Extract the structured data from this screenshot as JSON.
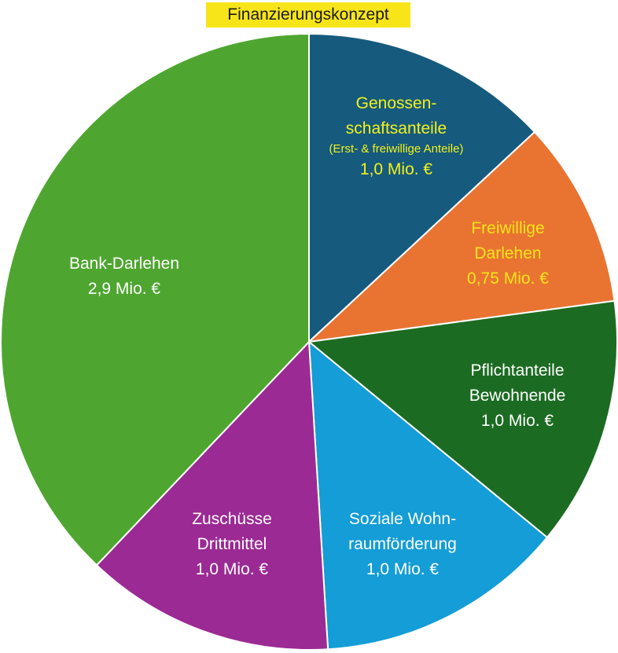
{
  "chart_data": {
    "type": "pie",
    "title": "Finanzierungskonzept",
    "colors": {
      "title_background": "#f7e51a"
    },
    "slices": [
      {
        "lines": [
          "Genossen-",
          "schaftsanteile"
        ],
        "note": "(Erst- & freiwillige Anteile)",
        "value_label": "1,0 Mio. €",
        "value": 1.0,
        "color": "#165a7e",
        "text_color": "#f2f21a"
      },
      {
        "lines": [
          "Freiwillige",
          "Darlehen"
        ],
        "note": "",
        "value_label": "0,75 Mio. €",
        "value": 0.75,
        "color": "#e97432",
        "text_color": "#f7e51a"
      },
      {
        "lines": [
          "Pflichtanteile",
          "Bewohnende"
        ],
        "note": "",
        "value_label": "1,0 Mio. €",
        "value": 1.0,
        "color": "#1c6b22",
        "text_color": "#ffffff"
      },
      {
        "lines": [
          "Soziale Wohn-",
          "raumförderung"
        ],
        "note": "",
        "value_label": "1,0 Mio. €",
        "value": 1.0,
        "color": "#149dd6",
        "text_color": "#ffffff"
      },
      {
        "lines": [
          "Zuschüsse",
          "Drittmittel"
        ],
        "note": "",
        "value_label": "1,0 Mio. €",
        "value": 1.0,
        "color": "#9b2a94",
        "text_color": "#ffffff"
      },
      {
        "lines": [
          "Bank-Darlehen"
        ],
        "note": "",
        "value_label": "2,9 Mio. €",
        "value": 2.9,
        "color": "#4ea630",
        "text_color": "#ffffff"
      }
    ]
  }
}
